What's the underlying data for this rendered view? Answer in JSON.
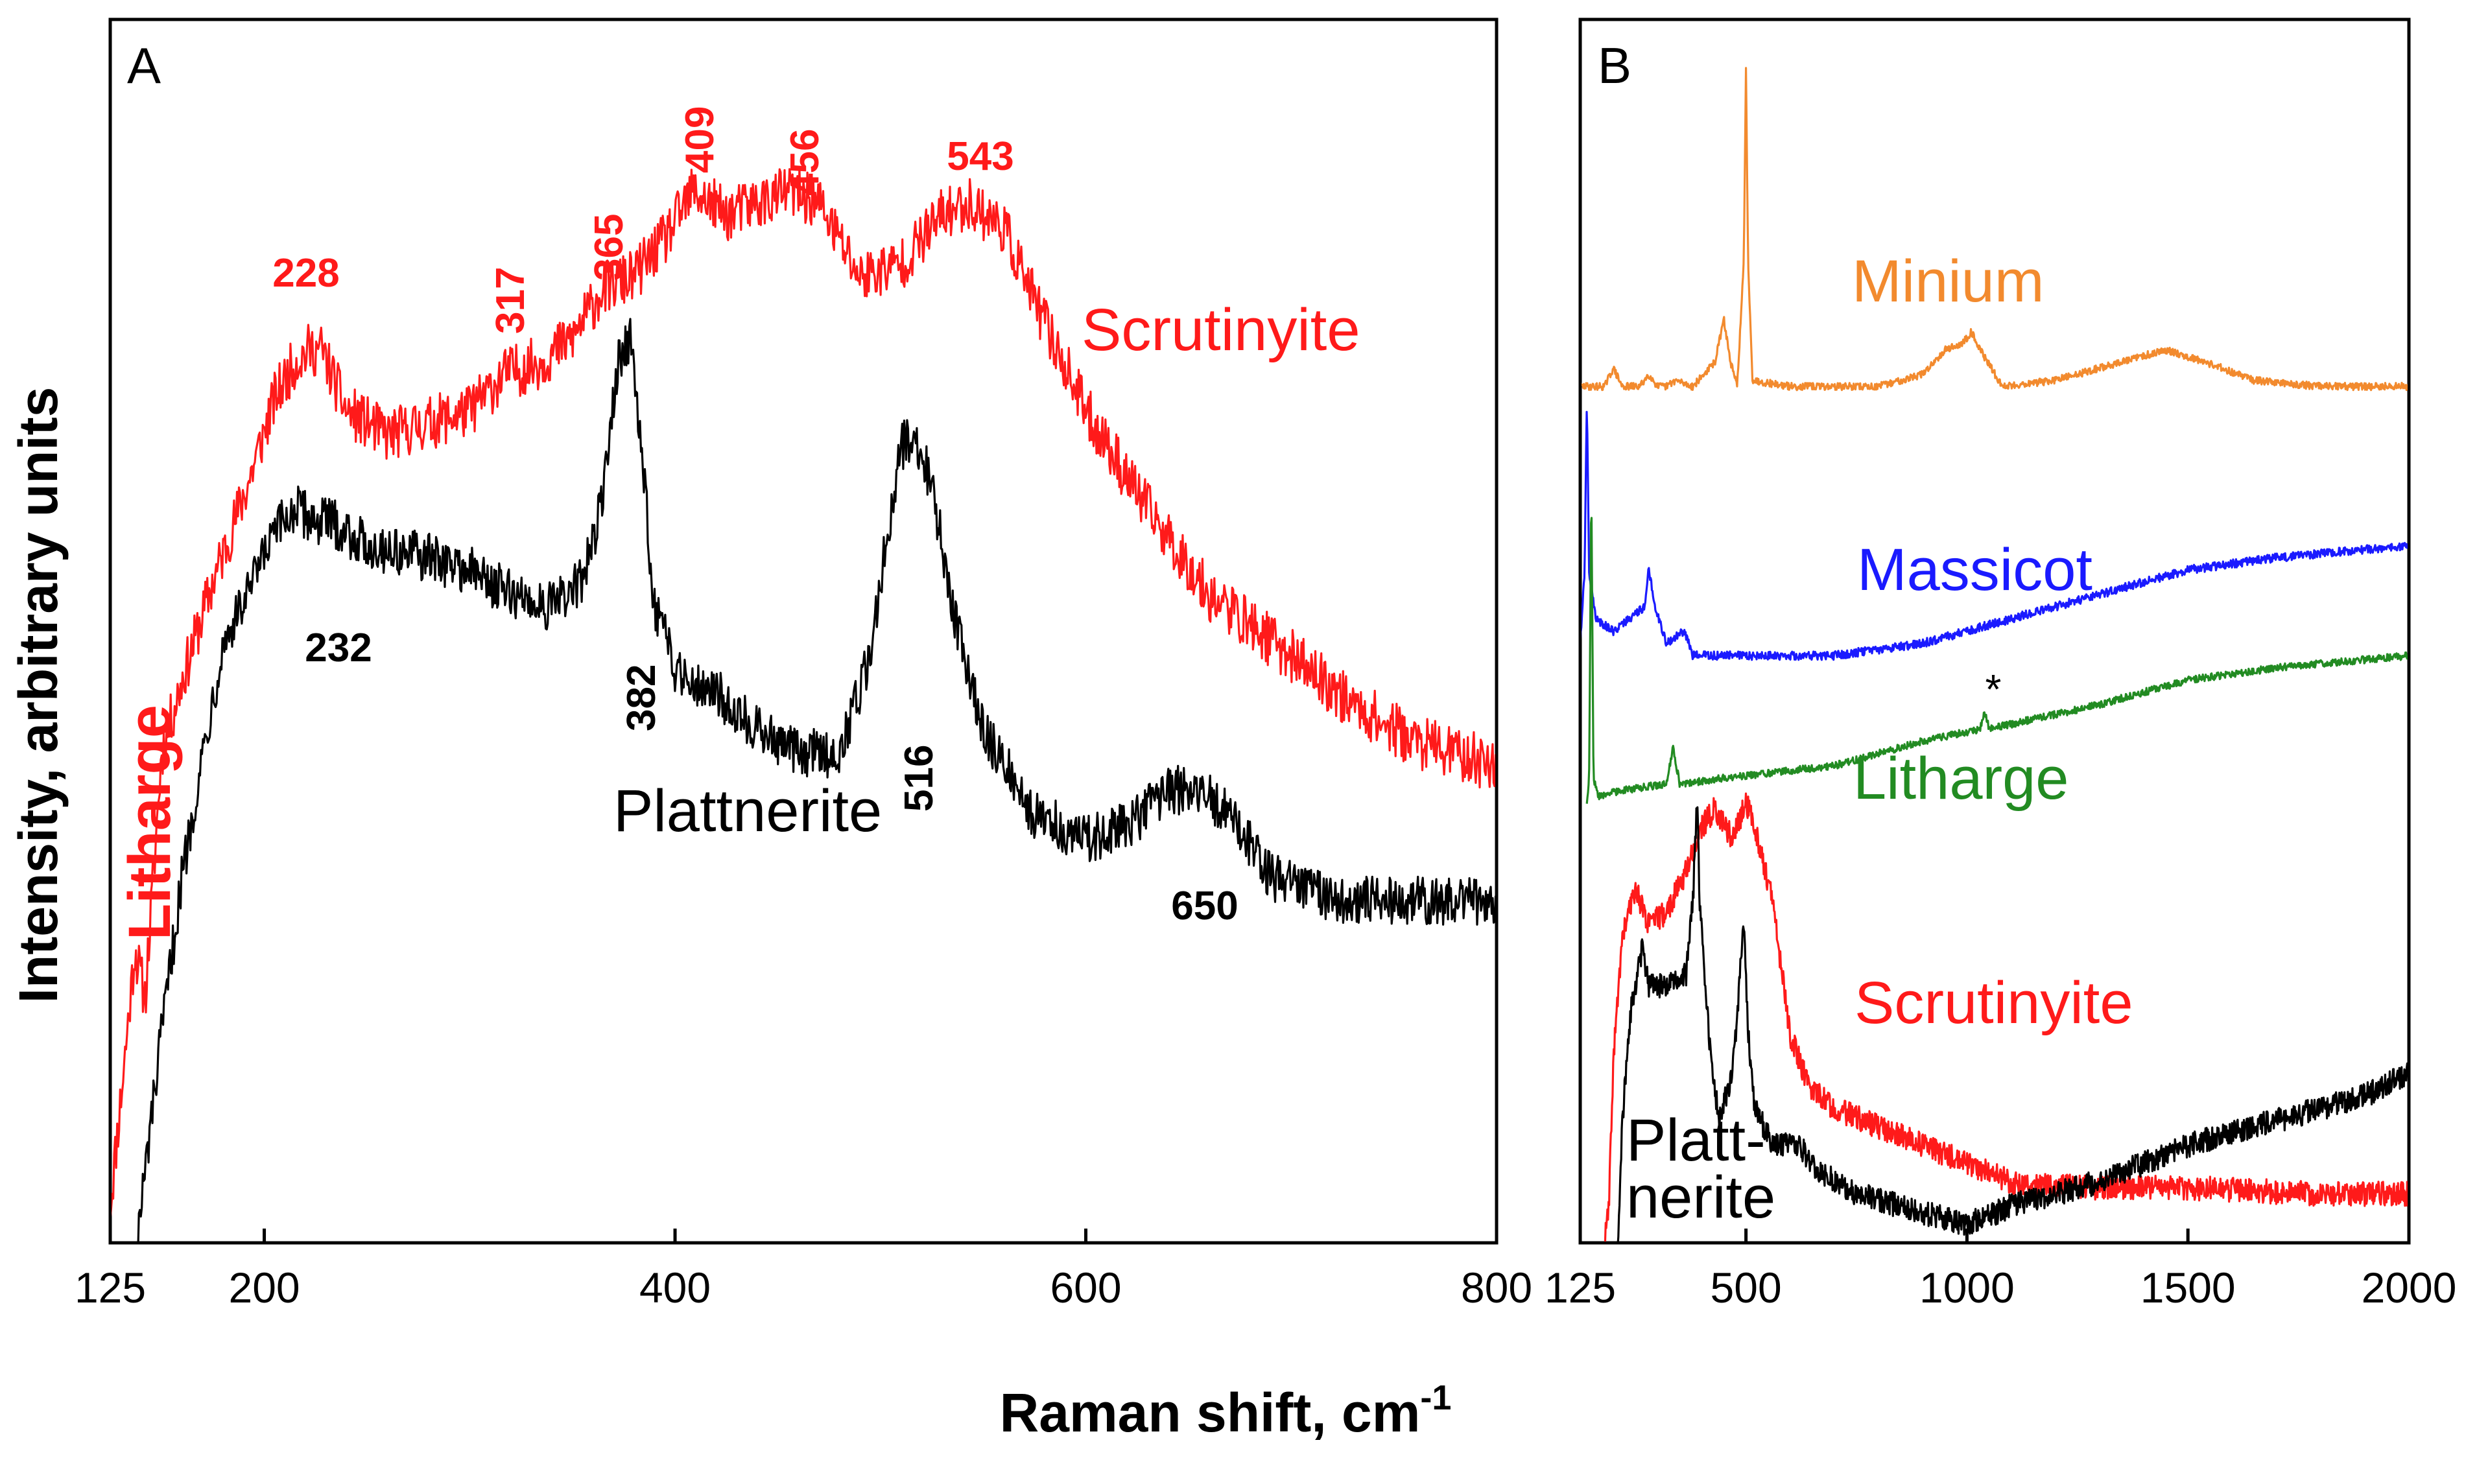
{
  "colors": {
    "scrutinyite": "#ff1a1a",
    "plattnerite": "#000000",
    "minium": "#f28a2e",
    "massicot": "#1a1aff",
    "litharge_green": "#228b22",
    "litharge_red": "#ff1a1a"
  },
  "axes": {
    "xlabel": "Raman shift, cm",
    "xlabel_sup": "-1",
    "ylabel": "Intensity, arbitrary units"
  },
  "chart_data": [
    {
      "panel": "A",
      "type": "line",
      "xlim": [
        125,
        800
      ],
      "ylim": [
        0,
        100
      ],
      "xticks": [
        125,
        200,
        400,
        600,
        800
      ],
      "xtick_labels": [
        "125",
        "200",
        "400",
        "600",
        "800"
      ],
      "series": [
        {
          "name": "Scrutinyite",
          "color": "#ff1a1a",
          "noise": 2.2,
          "points": [
            [
              125,
              3
            ],
            [
              132,
              15
            ],
            [
              137,
              24
            ],
            [
              142,
              20
            ],
            [
              150,
              40
            ],
            [
              160,
              46
            ],
            [
              175,
              54
            ],
            [
              192,
              62
            ],
            [
              205,
              69
            ],
            [
              215,
              72
            ],
            [
              222,
              73
            ],
            [
              228,
              73
            ],
            [
              240,
              68
            ],
            [
              260,
              66
            ],
            [
              280,
              67
            ],
            [
              300,
              68
            ],
            [
              317,
              71
            ],
            [
              335,
              72
            ],
            [
              350,
              74
            ],
            [
              365,
              78
            ],
            [
              380,
              79
            ],
            [
              395,
              82
            ],
            [
              409,
              86
            ],
            [
              425,
              84
            ],
            [
              440,
              85
            ],
            [
              456,
              86
            ],
            [
              470,
              85
            ],
            [
              490,
              79
            ],
            [
              510,
              80
            ],
            [
              530,
              84
            ],
            [
              543,
              85
            ],
            [
              560,
              83
            ],
            [
              575,
              77
            ],
            [
              600,
              68
            ],
            [
              630,
              60
            ],
            [
              660,
              53
            ],
            [
              700,
              48
            ],
            [
              730,
              44
            ],
            [
              760,
              41
            ],
            [
              800,
              39
            ]
          ]
        },
        {
          "name": "Plattnerite",
          "color": "#000000",
          "noise": 2.0,
          "points": [
            [
              138,
              0
            ],
            [
              145,
              10
            ],
            [
              150,
              17
            ],
            [
              160,
              30
            ],
            [
              170,
              40
            ],
            [
              180,
              49
            ],
            [
              192,
              53
            ],
            [
              205,
              58
            ],
            [
              215,
              60
            ],
            [
              225,
              59
            ],
            [
              232,
              59
            ],
            [
              250,
              57
            ],
            [
              280,
              56
            ],
            [
              300,
              55
            ],
            [
              320,
              53
            ],
            [
              340,
              52
            ],
            [
              355,
              54
            ],
            [
              365,
              61
            ],
            [
              372,
              72
            ],
            [
              378,
              74
            ],
            [
              383,
              66
            ],
            [
              390,
              52
            ],
            [
              400,
              47
            ],
            [
              420,
              45
            ],
            [
              440,
              42
            ],
            [
              460,
              40
            ],
            [
              480,
              40
            ],
            [
              495,
              48
            ],
            [
              505,
              60
            ],
            [
              510,
              65
            ],
            [
              516,
              66
            ],
            [
              525,
              62
            ],
            [
              535,
              52
            ],
            [
              550,
              42
            ],
            [
              575,
              35
            ],
            [
              600,
              33
            ],
            [
              620,
              34
            ],
            [
              640,
              37
            ],
            [
              655,
              37
            ],
            [
              670,
              35
            ],
            [
              690,
              30
            ],
            [
              720,
              28
            ],
            [
              760,
              28
            ],
            [
              800,
              28
            ]
          ]
        }
      ],
      "labels": {
        "series_names": {
          "scrutinyite": "Scrutinyite",
          "plattnerite": "Plattnerite",
          "litharge": "Litharge"
        },
        "red_peaks": [
          {
            "text": "228",
            "x": 228
          },
          {
            "text": "317",
            "x": 317
          },
          {
            "text": "365",
            "x": 365
          },
          {
            "text": "409",
            "x": 409
          },
          {
            "text": "456",
            "x": 456
          },
          {
            "text": "543",
            "x": 543
          }
        ],
        "black_peaks": [
          {
            "text": "232",
            "x": 232
          },
          {
            "text": "382",
            "x": 382
          },
          {
            "text": "516",
            "x": 516
          },
          {
            "text": "650",
            "x": 650
          }
        ],
        "panel_letter": "A"
      }
    },
    {
      "panel": "B",
      "type": "line",
      "xlim": [
        125,
        2000
      ],
      "ylim": [
        0,
        100
      ],
      "xticks": [
        125,
        500,
        1000,
        1500,
        2000
      ],
      "xtick_labels": [
        "125",
        "500",
        "1000",
        "1500",
        "2000"
      ],
      "series": [
        {
          "name": "Minium",
          "color": "#f28a2e",
          "noise": 0.3,
          "points": [
            [
              125,
              70
            ],
            [
              180,
              70
            ],
            [
              200,
              71.5
            ],
            [
              220,
              70
            ],
            [
              260,
              70
            ],
            [
              280,
              71
            ],
            [
              300,
              70
            ],
            [
              320,
              70
            ],
            [
              340,
              70.5
            ],
            [
              380,
              70
            ],
            [
              430,
              72
            ],
            [
              450,
              75.5
            ],
            [
              465,
              72
            ],
            [
              480,
              70
            ],
            [
              495,
              80
            ],
            [
              500,
              96
            ],
            [
              505,
              80
            ],
            [
              515,
              70.5
            ],
            [
              600,
              70
            ],
            [
              800,
              70
            ],
            [
              900,
              71
            ],
            [
              950,
              73
            ],
            [
              990,
              73.5
            ],
            [
              1010,
              74.5
            ],
            [
              1030,
              73
            ],
            [
              1080,
              70
            ],
            [
              1200,
              70.5
            ],
            [
              1350,
              72
            ],
            [
              1450,
              73
            ],
            [
              1540,
              72
            ],
            [
              1650,
              70.5
            ],
            [
              1800,
              70
            ],
            [
              2000,
              70
            ]
          ]
        },
        {
          "name": "Massicot",
          "color": "#1a1aff",
          "noise": 0.35,
          "points": [
            [
              125,
              49
            ],
            [
              135,
              55
            ],
            [
              140,
              69
            ],
            [
              145,
              55
            ],
            [
              160,
              51
            ],
            [
              200,
              50
            ],
            [
              270,
              52
            ],
            [
              280,
              55
            ],
            [
              295,
              52
            ],
            [
              320,
              49
            ],
            [
              360,
              50
            ],
            [
              380,
              48
            ],
            [
              500,
              48
            ],
            [
              700,
              48
            ],
            [
              900,
              49
            ],
            [
              1100,
              51
            ],
            [
              1300,
              53
            ],
            [
              1500,
              55
            ],
            [
              1700,
              56
            ],
            [
              2000,
              57
            ]
          ]
        },
        {
          "name": "Litharge",
          "color": "#228b22",
          "noise": 0.3,
          "points": [
            [
              140,
              36
            ],
            [
              145,
              37.5
            ],
            [
              150,
              62
            ],
            [
              155,
              38
            ],
            [
              165,
              36.5
            ],
            [
              220,
              37
            ],
            [
              320,
              37.5
            ],
            [
              335,
              40.5
            ],
            [
              350,
              37.5
            ],
            [
              450,
              38
            ],
            [
              700,
              39
            ],
            [
              900,
              41
            ],
            [
              1030,
              42
            ],
            [
              1040,
              43.5
            ],
            [
              1050,
              42
            ],
            [
              1300,
              44
            ],
            [
              1500,
              46
            ],
            [
              1700,
              47
            ],
            [
              2000,
              48
            ]
          ]
        },
        {
          "name": "Scrutinyite",
          "color": "#ff1a1a",
          "noise": 1.0,
          "points": [
            [
              180,
              0
            ],
            [
              190,
              3
            ],
            [
              200,
              15
            ],
            [
              220,
              25
            ],
            [
              250,
              29
            ],
            [
              260,
              28
            ],
            [
              280,
              26
            ],
            [
              320,
              27
            ],
            [
              360,
              30
            ],
            [
              400,
              34
            ],
            [
              430,
              35.5
            ],
            [
              470,
              33
            ],
            [
              500,
              36
            ],
            [
              520,
              34
            ],
            [
              560,
              28
            ],
            [
              600,
              17
            ],
            [
              640,
              13
            ],
            [
              700,
              11
            ],
            [
              800,
              9.5
            ],
            [
              900,
              8
            ],
            [
              1000,
              6.5
            ],
            [
              1100,
              5
            ],
            [
              1300,
              4.5
            ],
            [
              1500,
              4.5
            ],
            [
              1800,
              4
            ],
            [
              2000,
              4
            ]
          ]
        },
        {
          "name": "Plattnerite",
          "color": "#000000",
          "noise": 1.0,
          "points": [
            [
              210,
              0
            ],
            [
              220,
              10
            ],
            [
              240,
              19
            ],
            [
              265,
              24
            ],
            [
              280,
              21
            ],
            [
              320,
              21
            ],
            [
              365,
              22
            ],
            [
              380,
              28
            ],
            [
              390,
              37
            ],
            [
              395,
              28
            ],
            [
              420,
              15
            ],
            [
              440,
              10
            ],
            [
              470,
              14
            ],
            [
              495,
              26
            ],
            [
              505,
              17
            ],
            [
              520,
              11
            ],
            [
              560,
              8
            ],
            [
              620,
              8
            ],
            [
              660,
              6
            ],
            [
              750,
              4
            ],
            [
              850,
              3
            ],
            [
              950,
              2
            ],
            [
              1000,
              1.5
            ],
            [
              1100,
              3
            ],
            [
              1300,
              5
            ],
            [
              1500,
              8
            ],
            [
              1700,
              10
            ],
            [
              1900,
              12
            ],
            [
              2000,
              14
            ]
          ]
        }
      ],
      "labels": {
        "series_names": {
          "minium": "Minium",
          "massicot": "Massicot",
          "litharge": "Litharge",
          "scrutinyite": "Scrutinyite",
          "plattnerite_1": "Platt-",
          "plattnerite_2": "nerite"
        },
        "asterisk": "*",
        "panel_letter": "B"
      }
    }
  ]
}
